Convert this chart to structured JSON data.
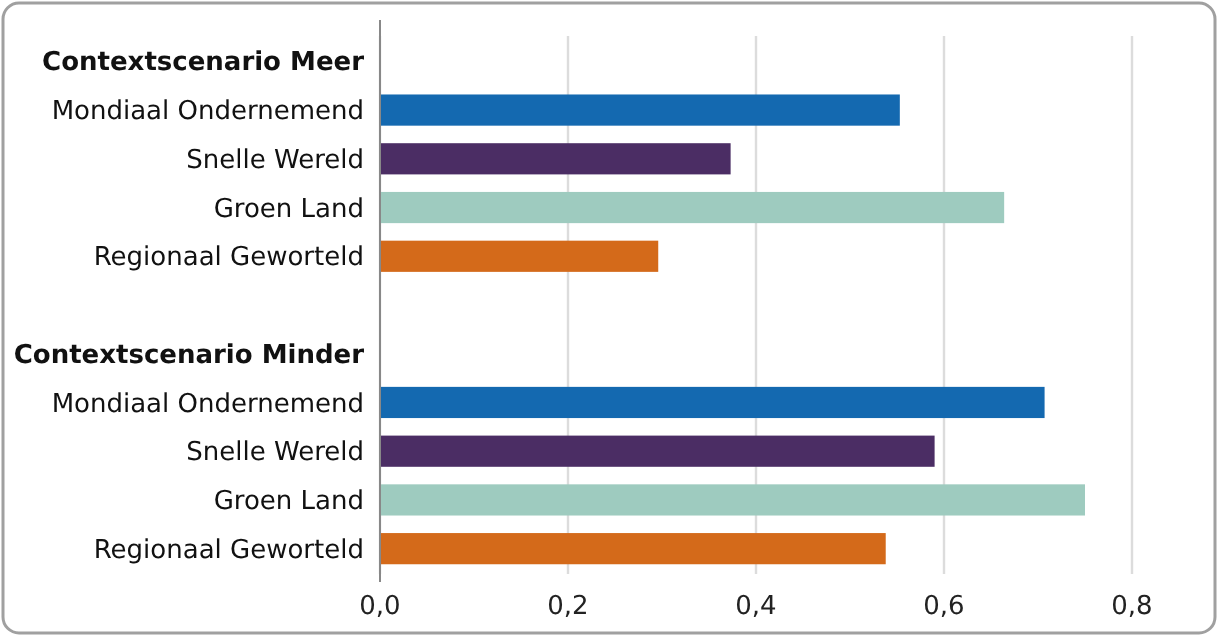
{
  "chart_data": {
    "type": "bar",
    "orientation": "horizontal",
    "categories": [
      "Contextscenario Meer",
      "Mondiaal Ondernemend",
      "Snelle Wereld",
      "Groen Land",
      "Regionaal Geworteld",
      null,
      "Contextscenario Minder",
      "Mondiaal Ondernemend",
      "Snelle Wereld",
      "Groen Land",
      "Regionaal Geworteld"
    ],
    "values": [
      null,
      0.553,
      0.373,
      0.664,
      0.296,
      null,
      null,
      0.707,
      0.59,
      0.75,
      0.538
    ],
    "colors": [
      null,
      "#1469b0",
      "#4b2d64",
      "#9ecbbf",
      "#d46a1a",
      null,
      null,
      "#1469b0",
      "#4b2d64",
      "#9ecbbf",
      "#d46a1a"
    ],
    "xlim": [
      0,
      0.8
    ],
    "xticks": [
      {
        "value": 0,
        "label": "0,0"
      },
      {
        "value": 0.2,
        "label": "0,2"
      },
      {
        "value": 0.4,
        "label": "0,4"
      },
      {
        "value": 0.6,
        "label": "0,6"
      },
      {
        "value": 0.8,
        "label": "0,8"
      }
    ],
    "grid": "x"
  }
}
